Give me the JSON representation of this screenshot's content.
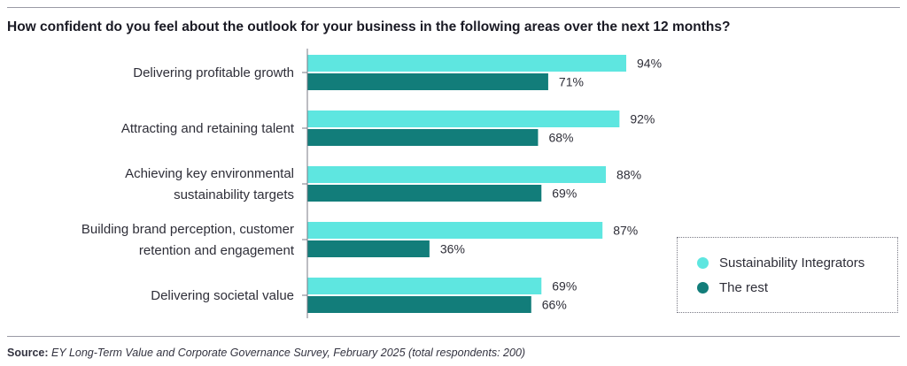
{
  "title": "How confident do you feel about the outlook for your business in the following areas over the next 12 months?",
  "source": {
    "label": "Source:",
    "text": "EY Long-Term Value and Corporate Governance Survey, February 2025 (total respondents: 200)"
  },
  "colors": {
    "integrators": "#5ee6e0",
    "rest": "#127d7a",
    "axis": "#7a7a85"
  },
  "legend": {
    "items": [
      {
        "label": "Sustainability Integrators"
      },
      {
        "label": "The rest"
      }
    ],
    "placement": "bottom-right"
  },
  "chart_data": {
    "type": "bar",
    "orientation": "horizontal",
    "categories": [
      [
        "Delivering profitable growth"
      ],
      [
        "Attracting and retaining talent"
      ],
      [
        "Achieving key environmental",
        "sustainability targets"
      ],
      [
        "Building brand perception, customer",
        "retention and engagement"
      ],
      [
        "Delivering societal value"
      ]
    ],
    "series": [
      {
        "name": "Sustainability Integrators",
        "values": [
          94,
          92,
          88,
          87,
          69
        ],
        "labels": [
          "94%",
          "92%",
          "88%",
          "87%",
          "69%"
        ]
      },
      {
        "name": "The rest",
        "values": [
          71,
          68,
          69,
          36,
          66
        ],
        "labels": [
          "71%",
          "68%",
          "69%",
          "36%",
          "66%"
        ]
      }
    ],
    "xlim": [
      0,
      100
    ],
    "grid": false
  }
}
